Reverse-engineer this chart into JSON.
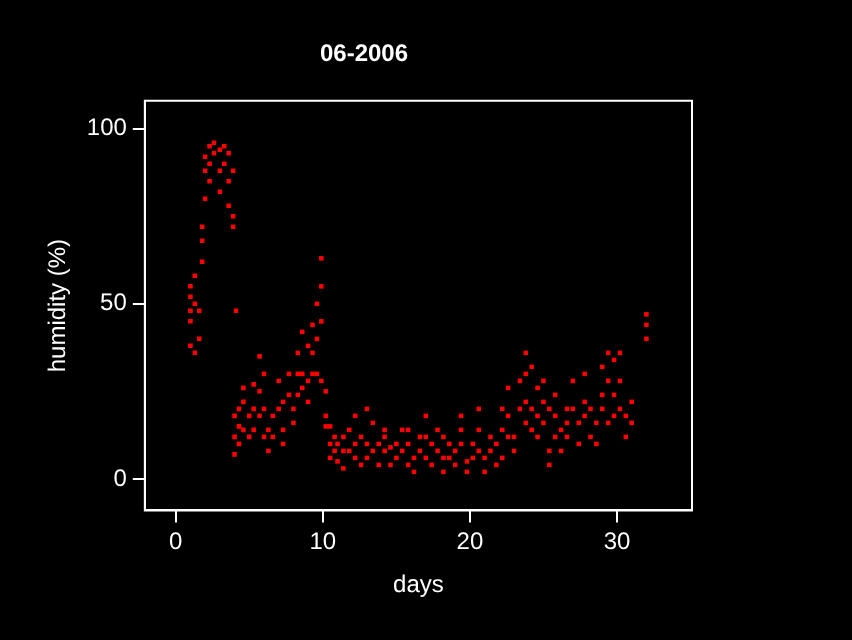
{
  "chart_data": {
    "type": "scatter",
    "title": "06-2006",
    "xlabel": "days",
    "ylabel": "humidity (%)",
    "xlim": [
      -2.1,
      35.1
    ],
    "xticks": [
      0,
      10,
      20,
      30
    ],
    "ylim": [
      -9,
      108
    ],
    "yticks": [
      0,
      50,
      100
    ],
    "grid": false,
    "legend": false,
    "marker": "square",
    "series": [
      {
        "color": "#ff0000",
        "x": [
          1.0,
          1.0,
          1.0,
          1.0,
          1.0,
          1.3,
          1.3,
          1.3,
          1.6,
          1.6,
          1.8,
          1.8,
          1.8,
          2.0,
          2.0,
          2.0,
          2.3,
          2.3,
          2.3,
          2.6,
          2.6,
          3.0,
          3.0,
          3.0,
          3.3,
          3.3,
          3.6,
          3.6,
          3.6,
          3.9,
          3.9,
          3.9,
          4.1,
          4.0,
          4.0,
          4.0,
          4.3,
          4.3,
          4.3,
          4.6,
          4.6,
          4.6,
          5.0,
          5.0,
          5.3,
          5.3,
          5.3,
          5.7,
          5.7,
          5.7,
          6.0,
          6.0,
          6.0,
          6.3,
          6.3,
          6.6,
          6.6,
          7.0,
          7.0,
          7.3,
          7.3,
          7.3,
          7.7,
          7.7,
          8.0,
          8.0,
          8.3,
          8.3,
          8.3,
          8.6,
          8.6,
          8.6,
          9.0,
          9.0,
          9.0,
          9.3,
          9.3,
          9.3,
          9.6,
          9.6,
          9.6,
          9.9,
          9.9,
          9.9,
          9.9,
          10.2,
          10.2,
          10.2,
          10.5,
          10.5,
          10.5,
          10.8,
          10.8,
          11.0,
          11.0,
          11.4,
          11.4,
          11.4,
          11.8,
          11.8,
          12.2,
          12.2,
          12.2,
          12.6,
          12.6,
          13.0,
          13.0,
          13.0,
          13.4,
          13.4,
          13.8,
          13.8,
          14.2,
          14.2,
          14.2,
          14.6,
          14.6,
          15.0,
          15.0,
          15.4,
          15.4,
          15.8,
          15.8,
          15.8,
          16.2,
          16.2,
          16.6,
          16.6,
          17.0,
          17.0,
          17.0,
          17.4,
          17.4,
          17.8,
          17.8,
          18.2,
          18.2,
          18.2,
          18.6,
          18.6,
          19.0,
          19.0,
          19.4,
          19.4,
          19.4,
          19.8,
          19.8,
          20.2,
          20.2,
          20.6,
          20.6,
          20.6,
          21.0,
          21.0,
          21.4,
          21.4,
          21.8,
          21.8,
          22.2,
          22.2,
          22.2,
          22.6,
          22.6,
          22.6,
          23.0,
          23.0,
          23.4,
          23.4,
          23.8,
          23.8,
          23.8,
          23.8,
          24.2,
          24.2,
          24.2,
          24.6,
          24.6,
          24.6,
          25.0,
          25.0,
          25.0,
          25.4,
          25.4,
          25.4,
          25.8,
          25.8,
          25.8,
          26.2,
          26.2,
          26.6,
          26.6,
          26.6,
          27.0,
          27.0,
          27.4,
          27.4,
          27.8,
          27.8,
          27.8,
          28.2,
          28.2,
          28.6,
          28.6,
          29.0,
          29.0,
          29.0,
          29.4,
          29.4,
          29.4,
          29.8,
          29.8,
          29.8,
          30.2,
          30.2,
          30.2,
          30.6,
          30.6,
          31.0,
          31.0,
          32.0,
          32.0,
          32.0
        ],
        "values": [
          45,
          52,
          38,
          55,
          48,
          36,
          50,
          58,
          40,
          48,
          62,
          68,
          72,
          80,
          88,
          92,
          95,
          90,
          85,
          96,
          93,
          94,
          88,
          82,
          95,
          90,
          93,
          85,
          78,
          88,
          75,
          72,
          48,
          7,
          12,
          18,
          10,
          15,
          20,
          22,
          14,
          26,
          12,
          18,
          27,
          20,
          14,
          35,
          25,
          18,
          30,
          20,
          12,
          14,
          8,
          18,
          12,
          28,
          20,
          22,
          14,
          10,
          30,
          24,
          20,
          16,
          30,
          36,
          24,
          42,
          30,
          26,
          38,
          28,
          22,
          30,
          44,
          36,
          50,
          40,
          30,
          63,
          55,
          45,
          28,
          25,
          18,
          15,
          15,
          10,
          6,
          8,
          12,
          5,
          10,
          3,
          8,
          12,
          8,
          14,
          10,
          18,
          6,
          12,
          4,
          20,
          10,
          6,
          16,
          8,
          4,
          10,
          8,
          14,
          12,
          4,
          9,
          10,
          6,
          14,
          8,
          4,
          10,
          14,
          6,
          2,
          12,
          8,
          18,
          12,
          6,
          10,
          4,
          8,
          14,
          12,
          6,
          2,
          10,
          6,
          8,
          4,
          14,
          18,
          10,
          5,
          2,
          6,
          10,
          8,
          14,
          20,
          6,
          2,
          12,
          8,
          4,
          10,
          6,
          14,
          20,
          12,
          26,
          18,
          12,
          8,
          20,
          28,
          36,
          30,
          22,
          16,
          32,
          20,
          14,
          26,
          18,
          12,
          22,
          28,
          16,
          20,
          8,
          4,
          12,
          18,
          24,
          14,
          8,
          20,
          16,
          12,
          28,
          20,
          16,
          10,
          22,
          30,
          18,
          12,
          20,
          10,
          16,
          24,
          32,
          20,
          36,
          28,
          16,
          34,
          24,
          18,
          36,
          28,
          20,
          12,
          18,
          22,
          16,
          40,
          44,
          47
        ]
      }
    ]
  }
}
